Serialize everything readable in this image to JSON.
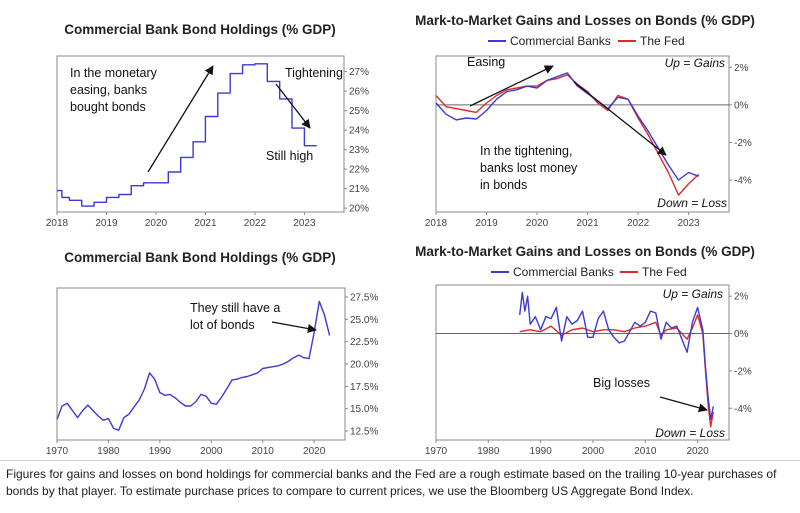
{
  "colors": {
    "banks": "#3a3ad6",
    "fed": "#e02828",
    "frame": "#888888"
  },
  "caption": "Figures for gains and losses on bond holdings for commercial banks and the Fed are a rough estimate based on the trailing 10-year purchases of bonds by that player. To estimate purchase prices to compare to current prices, we use the Bloomberg US Aggregate Bond Index.",
  "chart_data": [
    {
      "id": "p1",
      "type": "line",
      "title": "Commercial Bank Bond Holdings (% GDP)",
      "xlim": [
        2018,
        2023.8
      ],
      "ylim": [
        19.8,
        27.8
      ],
      "y_axis": "right",
      "x_ticks": [
        2018,
        2019,
        2020,
        2021,
        2022,
        2023
      ],
      "x_tick_labels": [
        "2018",
        "2019",
        "2020",
        "2021",
        "2022",
        "2023"
      ],
      "y_ticks": [
        20,
        21,
        22,
        23,
        24,
        25,
        26,
        27
      ],
      "y_tick_labels": [
        "20%",
        "21%",
        "22%",
        "23%",
        "24%",
        "25%",
        "26%",
        "27%"
      ],
      "step": true,
      "series": [
        {
          "color_key": "banks",
          "x": [
            2018.0,
            2018.1,
            2018.25,
            2018.5,
            2018.75,
            2019.0,
            2019.25,
            2019.5,
            2019.75,
            2020.0,
            2020.25,
            2020.5,
            2020.75,
            2021.0,
            2021.25,
            2021.5,
            2021.75,
            2022.0,
            2022.25,
            2022.5,
            2022.75,
            2023.0,
            2023.25
          ],
          "y": [
            20.9,
            20.55,
            20.4,
            20.1,
            20.3,
            20.55,
            20.7,
            21.15,
            21.3,
            21.3,
            21.85,
            22.6,
            23.4,
            24.7,
            25.9,
            26.9,
            27.35,
            27.4,
            26.5,
            25.6,
            24.1,
            23.2,
            23.2
          ]
        }
      ],
      "annotations": [
        {
          "text_lines": [
            "In the monetary",
            "easing, banks",
            "bought bonds"
          ]
        },
        {
          "text_lines": [
            "Tightening"
          ]
        },
        {
          "text_lines": [
            "Still high"
          ]
        }
      ]
    },
    {
      "id": "p2",
      "type": "line",
      "title": "Mark-to-Market Gains and Losses on Bonds (% GDP)",
      "xlim": [
        2018,
        2023.8
      ],
      "ylim": [
        -5.7,
        2.6
      ],
      "y_axis": "right",
      "x_ticks": [
        2018,
        2019,
        2020,
        2021,
        2022,
        2023
      ],
      "x_tick_labels": [
        "2018",
        "2019",
        "2020",
        "2021",
        "2022",
        "2023"
      ],
      "y_ticks": [
        2,
        0,
        -2,
        -4
      ],
      "y_tick_labels": [
        "2%",
        "0%",
        "-2%",
        "-4%"
      ],
      "legend": [
        "Commercial Banks",
        "The Fed"
      ],
      "series": [
        {
          "name": "Commercial Banks",
          "color_key": "banks",
          "x": [
            2018.0,
            2018.2,
            2018.4,
            2018.6,
            2018.8,
            2019.0,
            2019.2,
            2019.4,
            2019.6,
            2019.8,
            2020.0,
            2020.2,
            2020.4,
            2020.6,
            2020.8,
            2021.0,
            2021.2,
            2021.4,
            2021.6,
            2021.8,
            2022.0,
            2022.2,
            2022.4,
            2022.6,
            2022.8,
            2023.0,
            2023.2
          ],
          "y": [
            0.1,
            -0.5,
            -0.8,
            -0.7,
            -0.75,
            -0.3,
            0.3,
            0.7,
            0.8,
            1.0,
            0.9,
            1.3,
            1.5,
            1.7,
            1.0,
            0.6,
            0.2,
            -0.2,
            0.4,
            0.3,
            -0.6,
            -1.4,
            -2.3,
            -3.2,
            -4.0,
            -3.6,
            -3.8
          ]
        },
        {
          "name": "The Fed",
          "color_key": "fed",
          "x": [
            2018.0,
            2018.2,
            2018.4,
            2018.6,
            2018.8,
            2019.0,
            2019.2,
            2019.4,
            2019.6,
            2019.8,
            2020.0,
            2020.2,
            2020.4,
            2020.6,
            2020.8,
            2021.0,
            2021.2,
            2021.4,
            2021.6,
            2021.8,
            2022.0,
            2022.2,
            2022.4,
            2022.6,
            2022.8,
            2023.0,
            2023.2
          ],
          "y": [
            0.5,
            -0.1,
            -0.2,
            -0.3,
            -0.4,
            0.1,
            0.5,
            0.8,
            0.9,
            1.0,
            1.0,
            1.3,
            1.4,
            1.6,
            1.1,
            0.7,
            0.1,
            -0.3,
            0.5,
            0.3,
            -0.7,
            -1.6,
            -2.6,
            -3.6,
            -4.8,
            -4.2,
            -3.7
          ]
        }
      ],
      "annotations": [
        {
          "text_lines": [
            "Easing"
          ]
        },
        {
          "text_lines": [
            "In the tightening,",
            "banks lost money",
            "in bonds"
          ]
        },
        {
          "text_lines": [
            "Up = Gains"
          ],
          "italic": true
        },
        {
          "text_lines": [
            "Down = Loss"
          ],
          "italic": true
        }
      ]
    },
    {
      "id": "p3",
      "type": "line",
      "title": "Commercial Bank Bond Holdings (% GDP)",
      "xlim": [
        1970,
        2026
      ],
      "ylim": [
        11.5,
        28.5
      ],
      "y_axis": "right",
      "x_ticks": [
        1970,
        1980,
        1990,
        2000,
        2010,
        2020
      ],
      "x_tick_labels": [
        "1970",
        "1980",
        "1990",
        "2000",
        "2010",
        "2020"
      ],
      "y_ticks": [
        12.5,
        15,
        17.5,
        20,
        22.5,
        25,
        27.5
      ],
      "y_tick_labels": [
        "12.5%",
        "15.0%",
        "17.5%",
        "20.0%",
        "22.5%",
        "25.0%",
        "27.5%"
      ],
      "series": [
        {
          "color_key": "banks",
          "x": [
            1970,
            1971,
            1972,
            1973,
            1974,
            1975,
            1976,
            1977,
            1978,
            1979,
            1980,
            1981,
            1982,
            1983,
            1984,
            1985,
            1986,
            1987,
            1988,
            1989,
            1990,
            1991,
            1992,
            1993,
            1994,
            1995,
            1996,
            1997,
            1998,
            1999,
            2000,
            2001,
            2002,
            2003,
            2004,
            2005,
            2006,
            2007,
            2008,
            2009,
            2010,
            2011,
            2012,
            2013,
            2014,
            2015,
            2016,
            2017,
            2018,
            2019,
            2020,
            2021,
            2022,
            2023
          ],
          "y": [
            13.8,
            15.3,
            15.6,
            14.8,
            14.0,
            14.8,
            15.4,
            14.8,
            14.2,
            13.7,
            13.9,
            12.8,
            12.6,
            14.0,
            14.4,
            15.2,
            16.0,
            17.2,
            19.0,
            18.3,
            16.8,
            16.5,
            16.6,
            16.2,
            15.7,
            15.3,
            15.3,
            15.8,
            16.6,
            16.4,
            15.6,
            15.5,
            16.3,
            17.2,
            18.2,
            18.3,
            18.5,
            18.6,
            18.8,
            19.0,
            19.5,
            19.6,
            19.7,
            19.8,
            20.0,
            20.3,
            20.7,
            21.0,
            20.7,
            20.6,
            23.5,
            27.0,
            25.5,
            23.2
          ]
        }
      ],
      "annotations": [
        {
          "text_lines": [
            "They still have a",
            "lot of bonds"
          ]
        }
      ]
    },
    {
      "id": "p4",
      "type": "line",
      "title": "Mark-to-Market Gains and Losses on Bonds (% GDP)",
      "xlim": [
        1970,
        2026
      ],
      "ylim": [
        -5.7,
        2.6
      ],
      "y_axis": "right",
      "x_ticks": [
        1970,
        1980,
        1990,
        2000,
        2010,
        2020
      ],
      "x_tick_labels": [
        "1970",
        "1980",
        "1990",
        "2000",
        "2010",
        "2020"
      ],
      "y_ticks": [
        2,
        0,
        -2,
        -4
      ],
      "y_tick_labels": [
        "2%",
        "0%",
        "-2%",
        "-4%"
      ],
      "legend": [
        "Commercial Banks",
        "The Fed"
      ],
      "series": [
        {
          "name": "Commercial Banks",
          "color_key": "banks",
          "x": [
            1986,
            1986.5,
            1987,
            1987.5,
            1988,
            1989,
            1990,
            1991,
            1992,
            1993,
            1994,
            1995,
            1996,
            1997,
            1998,
            1999,
            2000,
            2001,
            2002,
            2003,
            2004,
            2005,
            2006,
            2007,
            2008,
            2009,
            2010,
            2011,
            2012,
            2013,
            2014,
            2015,
            2016,
            2017,
            2018,
            2019,
            2020,
            2021,
            2021.5,
            2022,
            2022.5,
            2023
          ],
          "y": [
            1.0,
            2.2,
            1.2,
            2.0,
            0.5,
            0.9,
            0.2,
            0.9,
            0.8,
            1.4,
            -0.4,
            0.9,
            0.5,
            0.7,
            1.2,
            -0.2,
            -0.2,
            0.8,
            1.2,
            0.2,
            -0.2,
            -0.5,
            -0.4,
            0.1,
            0.6,
            0.4,
            0.6,
            1.2,
            1.1,
            -0.3,
            0.6,
            0.3,
            0.4,
            -0.3,
            -1.0,
            0.6,
            1.4,
            0.2,
            -1.8,
            -3.4,
            -4.6,
            -3.9
          ]
        },
        {
          "name": "The Fed",
          "color_key": "fed",
          "x": [
            1986,
            1988,
            1990,
            1992,
            1994,
            1996,
            1998,
            2000,
            2002,
            2004,
            2006,
            2008,
            2010,
            2012,
            2013,
            2014,
            2016,
            2018,
            2019,
            2020,
            2021,
            2021.5,
            2022,
            2022.5,
            2023
          ],
          "y": [
            0.1,
            0.2,
            0.1,
            0.4,
            -0.1,
            0.2,
            0.3,
            0.1,
            0.2,
            0.2,
            0.1,
            0.3,
            0.4,
            0.6,
            -0.1,
            0.2,
            0.3,
            -0.3,
            0.3,
            1.0,
            0.0,
            -2.0,
            -3.8,
            -5.0,
            -4.2
          ]
        }
      ],
      "annotations": [
        {
          "text_lines": [
            "Big losses"
          ]
        },
        {
          "text_lines": [
            "Up = Gains"
          ],
          "italic": true
        },
        {
          "text_lines": [
            "Down = Loss"
          ],
          "italic": true
        }
      ]
    }
  ]
}
